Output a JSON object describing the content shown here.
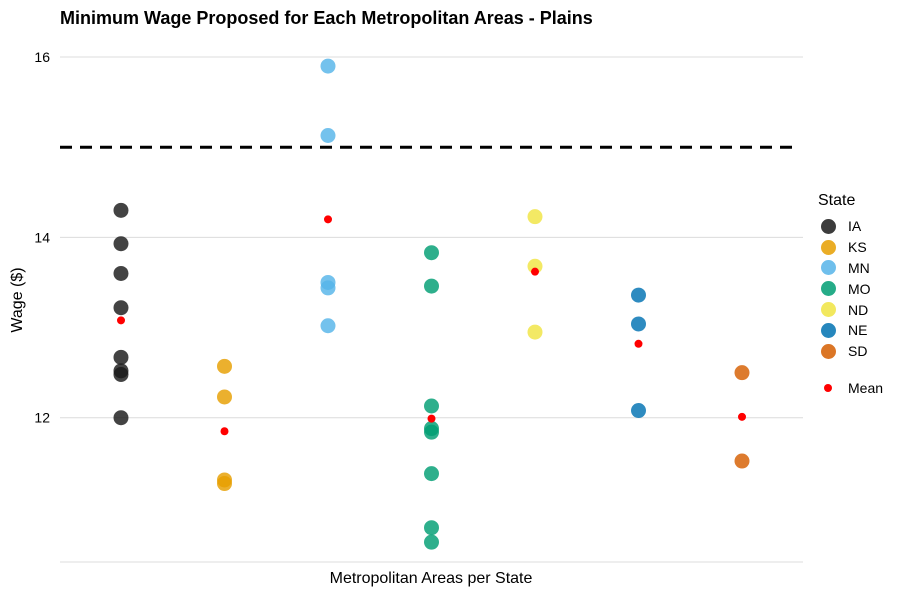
{
  "chart_data": {
    "type": "scatter",
    "title": "Minimum Wage Proposed for Each Metropolitan Areas - Plains",
    "xlabel": "Metropolitan Areas per State",
    "ylabel": "Wage ($)",
    "ylim": [
      10.4,
      16.3
    ],
    "yticks": [
      12,
      14,
      16
    ],
    "reference_line": 15,
    "grid": true,
    "legend_position": "right",
    "legend_title": "State",
    "mean_label": "Mean",
    "mean_color": "#ff0000",
    "series": [
      {
        "name": "IA",
        "color": "#1a1a1a",
        "values": [
          14.3,
          13.93,
          13.6,
          13.22,
          12.67,
          12.52,
          12.48,
          12.0
        ],
        "mean": 13.08
      },
      {
        "name": "KS",
        "color": "#e69f00",
        "values": [
          12.57,
          12.23,
          11.31,
          11.27
        ],
        "mean": 11.85
      },
      {
        "name": "MN",
        "color": "#56b4e9",
        "values": [
          15.9,
          15.13,
          13.5,
          13.44,
          13.02
        ],
        "mean": 14.2
      },
      {
        "name": "MO",
        "color": "#009e73",
        "values": [
          13.83,
          13.46,
          12.13,
          11.88,
          11.84,
          11.38,
          10.78,
          10.62
        ],
        "mean": 11.99
      },
      {
        "name": "ND",
        "color": "#f0e442",
        "values": [
          14.23,
          13.68,
          12.95
        ],
        "mean": 13.62
      },
      {
        "name": "NE",
        "color": "#0072b2",
        "values": [
          13.36,
          13.04,
          12.08
        ],
        "mean": 12.82
      },
      {
        "name": "SD",
        "color": "#d55e00",
        "values": [
          12.5,
          11.52
        ],
        "mean": 12.01
      }
    ]
  }
}
